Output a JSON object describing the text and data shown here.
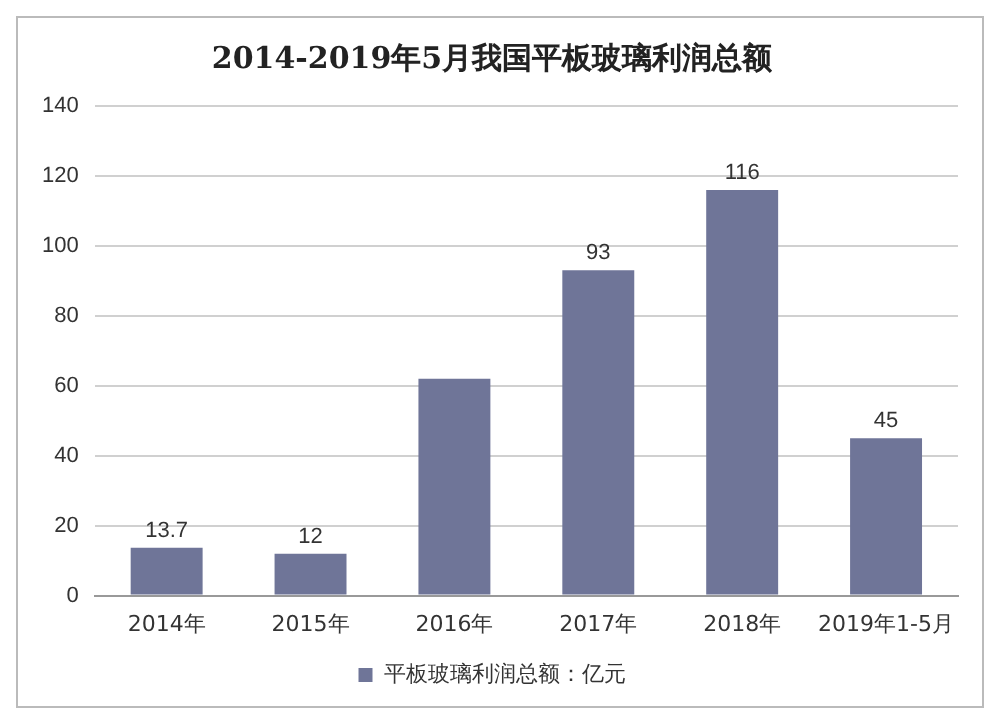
{
  "chart_data": {
    "type": "bar",
    "title": "2014-2019年5月我国平板玻璃利润总额",
    "categories": [
      "2014年",
      "2015年",
      "2016年",
      "2017年",
      "2018年",
      "2019年1-5月"
    ],
    "series": [
      {
        "name": "平板玻璃利润总额：亿元",
        "color": "#6f7598",
        "values": [
          13.7,
          12,
          62,
          93,
          116,
          45
        ],
        "value_labels": [
          "13.7",
          "12",
          null,
          "93",
          "116",
          "45"
        ]
      }
    ],
    "ylim": [
      0,
      140
    ],
    "yticks": [
      0,
      20,
      40,
      60,
      80,
      100,
      120,
      140
    ],
    "grid": "y",
    "legend": "bottom"
  }
}
